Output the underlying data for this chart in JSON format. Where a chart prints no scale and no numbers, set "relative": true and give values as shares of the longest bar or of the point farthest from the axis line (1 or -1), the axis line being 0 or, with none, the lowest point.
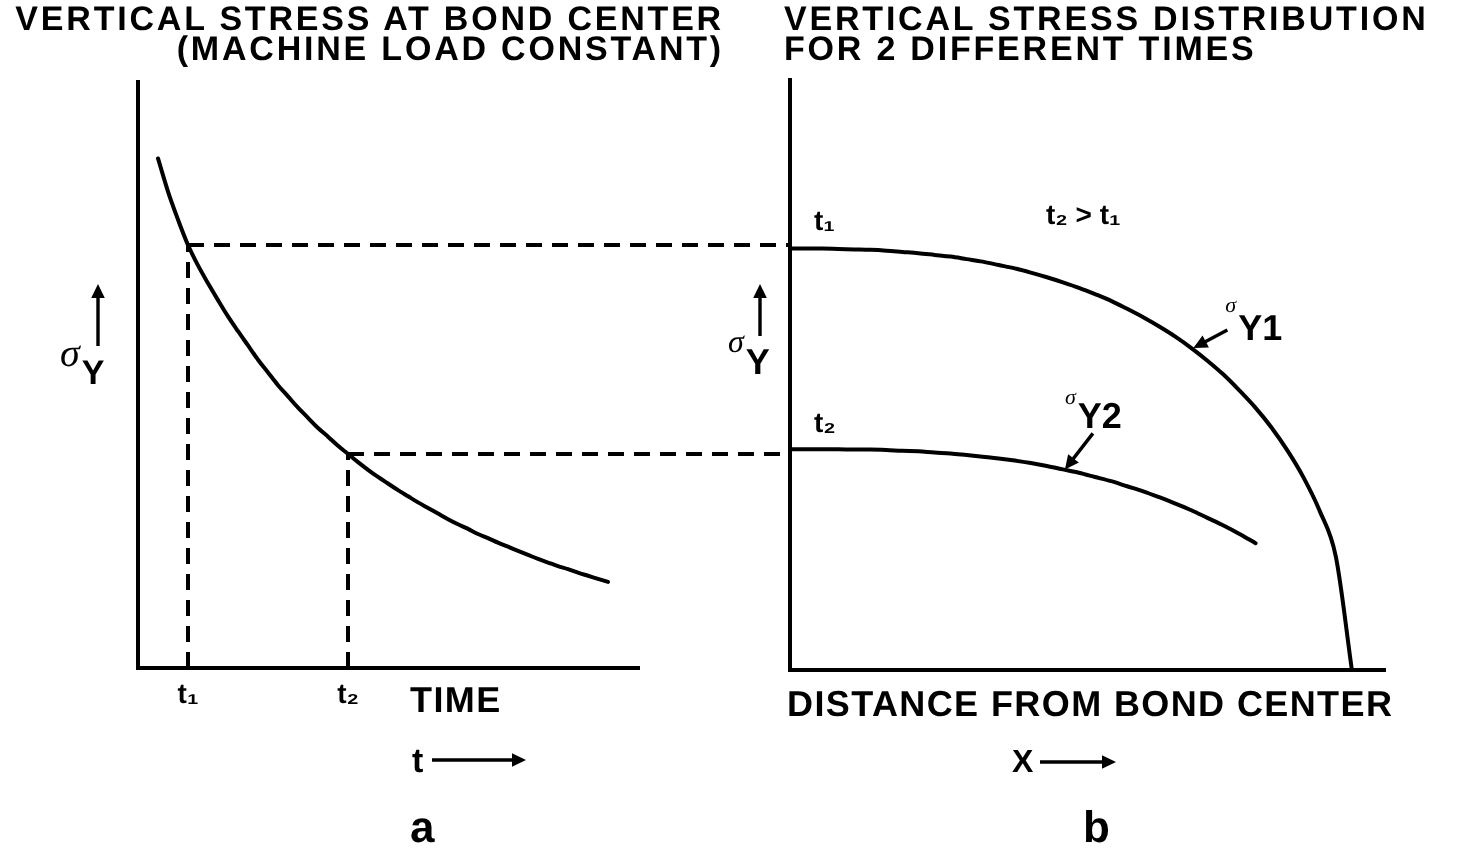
{
  "chart_data": [
    {
      "type": "line",
      "title": "VERTICAL STRESS AT BOND CENTER",
      "subtitle": "(MACHINE LOAD CONSTANT)",
      "xlabel": "TIME",
      "ylabel": "σ$_{Y}$",
      "annotations": [
        "t",
        "a"
      ],
      "relative": true,
      "tick_labels": "x",
      "marker": "none",
      "line_style": "solid",
      "categories": [
        null,
        null,
        null,
        null,
        null,
        "t₁",
        null,
        null,
        null,
        null,
        null,
        null,
        null,
        null,
        null,
        null,
        null,
        null,
        null,
        null,
        null,
        "t₂",
        null,
        null,
        null,
        null,
        null,
        null,
        null,
        null,
        null,
        null,
        null,
        null,
        null,
        null,
        null,
        null,
        null,
        null,
        null,
        null,
        null,
        null,
        null,
        null,
        null,
        null,
        null,
        null,
        null
      ],
      "series": [
        {
          "color": "#000000",
          "values": [
            null,
            null,
            1.0,
            0.935,
            0.88,
            0.83,
            0.79,
            0.755,
            0.722,
            0.69,
            0.661,
            0.633,
            0.605,
            0.58,
            0.555,
            0.533,
            0.511,
            0.491,
            0.471,
            0.454,
            0.436,
            0.42,
            0.404,
            0.389,
            0.375,
            0.362,
            0.349,
            0.337,
            0.325,
            0.314,
            0.303,
            0.292,
            0.282,
            0.273,
            0.263,
            0.255,
            0.246,
            0.238,
            0.23,
            0.222,
            0.214,
            0.207,
            0.2,
            0.194,
            0.187,
            0.181,
            0.175,
            0.169,
            null,
            null,
            null
          ]
        }
      ],
      "ref_lines": [
        {
          "axis": "x",
          "value": "t₁",
          "line_style": "dashed",
          "color": "#000000"
        },
        {
          "axis": "x",
          "value": "t₂",
          "line_style": "dashed",
          "color": "#000000"
        },
        {
          "axis": "y",
          "value": 0.83,
          "line_style": "dashed",
          "color": "#000000"
        },
        {
          "axis": "y",
          "value": 0.42,
          "line_style": "dashed",
          "color": "#000000"
        }
      ]
    },
    {
      "type": "line",
      "title": "VERTICAL STRESS DISTRIBUTION",
      "subtitle": "FOR 2 DIFFERENT TIMES",
      "xlabel": "DISTANCE FROM BOND CENTER",
      "ylabel": "σ$_{Y}$",
      "annotations": [
        {
          "text": "t₁",
          "y": 1
        },
        {
          "text": "t₂",
          "y": 0.524
        },
        "t₂ > t₁",
        "X",
        "b"
      ],
      "relative": true,
      "tick_labels": false,
      "marker": "none",
      "line_style": "solid",
      "categories": [
        null,
        null,
        null,
        null,
        null,
        null,
        null,
        null,
        null,
        null,
        null,
        null,
        null,
        null,
        null,
        null,
        null,
        null,
        null,
        null,
        null,
        null,
        null,
        null,
        null,
        null,
        null,
        null,
        null,
        null,
        null,
        null,
        null,
        null,
        null,
        null,
        null,
        null
      ],
      "series": [
        {
          "name": "σ$_{Y1}$",
          "color": "#000000",
          "values": [
            1.0,
            1.0,
            1.0,
            0.999,
            0.998,
            0.997,
            0.995,
            0.992,
            0.989,
            0.985,
            0.981,
            0.975,
            0.969,
            0.961,
            0.953,
            0.943,
            0.932,
            0.92,
            0.907,
            0.892,
            0.876,
            0.857,
            0.837,
            0.815,
            0.791,
            0.764,
            0.734,
            0.701,
            0.663,
            0.622,
            0.575,
            0.52,
            0.456,
            0.377,
            0.269,
            0,
            null,
            null
          ]
        },
        {
          "name": "σ$_{Y2}$",
          "color": "#000000",
          "values": [
            0.524,
            0.524,
            0.524,
            0.524,
            0.523,
            0.523,
            0.522,
            0.52,
            0.519,
            0.516,
            0.514,
            0.51,
            0.506,
            0.502,
            0.497,
            0.491,
            0.484,
            0.476,
            0.468,
            0.458,
            0.448,
            0.436,
            0.424,
            0.41,
            0.395,
            0.379,
            0.361,
            0.343,
            0.323,
            0.301,
            null,
            null,
            null,
            null,
            null,
            null,
            null,
            null
          ]
        }
      ]
    }
  ]
}
